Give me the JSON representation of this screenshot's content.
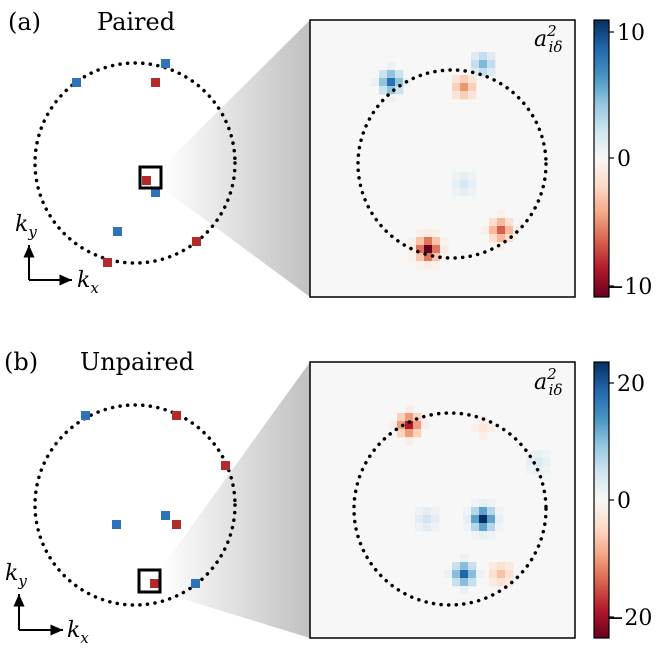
{
  "panels": [
    {
      "label": "(a)",
      "title": "Paired",
      "colorbar": {
        "label_main": "a",
        "label_sup": "2",
        "label_sub": "iδ",
        "ticks": [
          "10",
          "0",
          "−10"
        ],
        "max": 11,
        "min": -11
      },
      "axis_x": {
        "base": "k",
        "sub": "x"
      },
      "axis_y": {
        "base": "k",
        "sub": "y"
      }
    },
    {
      "label": "(b)",
      "title": "Unpaired",
      "colorbar": {
        "label_main": "a",
        "label_sup": "2",
        "label_sub": "iδ",
        "ticks": [
          "20",
          "0",
          "−20"
        ],
        "max": 23,
        "min": -23
      },
      "axis_x": {
        "base": "k",
        "sub": "x"
      },
      "axis_y": {
        "base": "k",
        "sub": "y"
      }
    }
  ],
  "colors": {
    "blue": "#2f72b8",
    "red": "#b22a2a",
    "cmap": [
      "#67001f",
      "#b2182b",
      "#d6604d",
      "#f4a582",
      "#fddbc7",
      "#f7f7f7",
      "#d1e5f0",
      "#92c5de",
      "#4393c3",
      "#2166ac",
      "#053061"
    ]
  }
}
